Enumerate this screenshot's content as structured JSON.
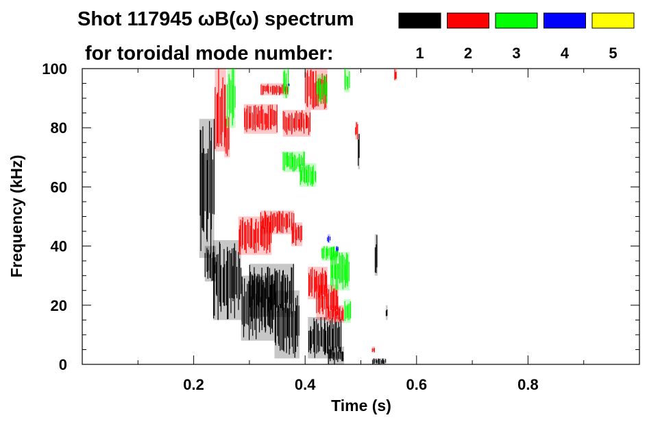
{
  "chart_data": {
    "type": "heatmap",
    "title_line1": "Shot 117945 ωB(ω) spectrum",
    "title_line2": "for toroidal mode number:",
    "xlabel": "Time (s)",
    "ylabel": "Frequency (kHz)",
    "xlim": [
      0.0,
      1.0
    ],
    "ylim": [
      0,
      100
    ],
    "x_ticks": [
      {
        "value": 0.2,
        "label": "0.2"
      },
      {
        "value": 0.4,
        "label": "0.4"
      },
      {
        "value": 0.6,
        "label": "0.6"
      },
      {
        "value": 0.8,
        "label": "0.8"
      }
    ],
    "y_ticks": [
      {
        "value": 0,
        "label": "0"
      },
      {
        "value": 20,
        "label": "20"
      },
      {
        "value": 40,
        "label": "40"
      },
      {
        "value": 60,
        "label": "60"
      },
      {
        "value": 80,
        "label": "80"
      },
      {
        "value": 100,
        "label": "100"
      }
    ],
    "legend": [
      {
        "mode": "1",
        "color": "#000000"
      },
      {
        "mode": "2",
        "color": "#ff0000"
      },
      {
        "mode": "3",
        "color": "#00ff00"
      },
      {
        "mode": "4",
        "color": "#0000ff"
      },
      {
        "mode": "5",
        "color": "#ffff00"
      }
    ],
    "series": [
      {
        "name": "n=1",
        "mode": "1",
        "regions": [
          {
            "t": [
              0.21,
              0.237
            ],
            "f": [
              36,
              83
            ]
          },
          {
            "t": [
              0.22,
              0.24
            ],
            "f": [
              28,
              40
            ]
          },
          {
            "t": [
              0.235,
              0.285
            ],
            "f": [
              15,
              42
            ]
          },
          {
            "t": [
              0.285,
              0.345
            ],
            "f": [
              8,
              30
            ]
          },
          {
            "t": [
              0.3,
              0.38
            ],
            "f": [
              16,
              34
            ]
          },
          {
            "t": [
              0.345,
              0.39
            ],
            "f": [
              2,
              25
            ]
          },
          {
            "t": [
              0.405,
              0.465
            ],
            "f": [
              2,
              16
            ]
          },
          {
            "t": [
              0.44,
              0.47
            ],
            "f": [
              0,
              6
            ]
          },
          {
            "t": [
              0.52,
              0.545
            ],
            "f": [
              0,
              2
            ]
          },
          {
            "t": [
              0.525,
              0.53
            ],
            "f": [
              30,
              44
            ]
          },
          {
            "t": [
              0.495,
              0.498
            ],
            "f": [
              66,
              78
            ]
          },
          {
            "t": [
              0.545,
              0.548
            ],
            "f": [
              15,
              20
            ]
          }
        ]
      },
      {
        "name": "n=2",
        "mode": "2",
        "regions": [
          {
            "t": [
              0.238,
              0.258
            ],
            "f": [
              72,
              100
            ]
          },
          {
            "t": [
              0.255,
              0.265
            ],
            "f": [
              70,
              84
            ]
          },
          {
            "t": [
              0.32,
              0.38
            ],
            "f": [
              44,
              52
            ]
          },
          {
            "t": [
              0.28,
              0.34
            ],
            "f": [
              37,
              50
            ]
          },
          {
            "t": [
              0.375,
              0.395
            ],
            "f": [
              40,
              48
            ]
          },
          {
            "t": [
              0.29,
              0.35
            ],
            "f": [
              78,
              88
            ]
          },
          {
            "t": [
              0.36,
              0.41
            ],
            "f": [
              77,
              86
            ]
          },
          {
            "t": [
              0.32,
              0.37
            ],
            "f": [
              91,
              95
            ]
          },
          {
            "t": [
              0.4,
              0.44
            ],
            "f": [
              86,
              100
            ]
          },
          {
            "t": [
              0.405,
              0.44
            ],
            "f": [
              22,
              33
            ]
          },
          {
            "t": [
              0.42,
              0.46
            ],
            "f": [
              15,
              27
            ]
          },
          {
            "t": [
              0.44,
              0.47
            ],
            "f": [
              14,
              20
            ]
          },
          {
            "t": [
              0.49,
              0.495
            ],
            "f": [
              76,
              82
            ]
          },
          {
            "t": [
              0.56,
              0.565
            ],
            "f": [
              96,
              100
            ]
          },
          {
            "t": [
              0.52,
              0.525
            ],
            "f": [
              4,
              6
            ]
          }
        ]
      },
      {
        "name": "n=3",
        "mode": "3",
        "regions": [
          {
            "t": [
              0.26,
              0.275
            ],
            "f": [
              80,
              100
            ]
          },
          {
            "t": [
              0.36,
              0.4
            ],
            "f": [
              65,
              72
            ]
          },
          {
            "t": [
              0.39,
              0.42
            ],
            "f": [
              60,
              68
            ]
          },
          {
            "t": [
              0.36,
              0.37
            ],
            "f": [
              90,
              100
            ]
          },
          {
            "t": [
              0.42,
              0.44
            ],
            "f": [
              88,
              98
            ]
          },
          {
            "t": [
              0.445,
              0.48
            ],
            "f": [
              25,
              38
            ]
          },
          {
            "t": [
              0.43,
              0.46
            ],
            "f": [
              35,
              40
            ]
          },
          {
            "t": [
              0.47,
              0.482
            ],
            "f": [
              14,
              22
            ]
          },
          {
            "t": [
              0.47,
              0.48
            ],
            "f": [
              92,
              100
            ]
          }
        ]
      },
      {
        "name": "n=4",
        "mode": "4",
        "regions": [
          {
            "t": [
              0.44,
              0.445
            ],
            "f": [
              41,
              44
            ]
          },
          {
            "t": [
              0.455,
              0.46
            ],
            "f": [
              38,
              40
            ]
          },
          {
            "t": [
              0.37,
              0.372
            ],
            "f": [
              94,
              95
            ]
          }
        ]
      },
      {
        "name": "n=5",
        "mode": "5",
        "regions": []
      }
    ]
  }
}
